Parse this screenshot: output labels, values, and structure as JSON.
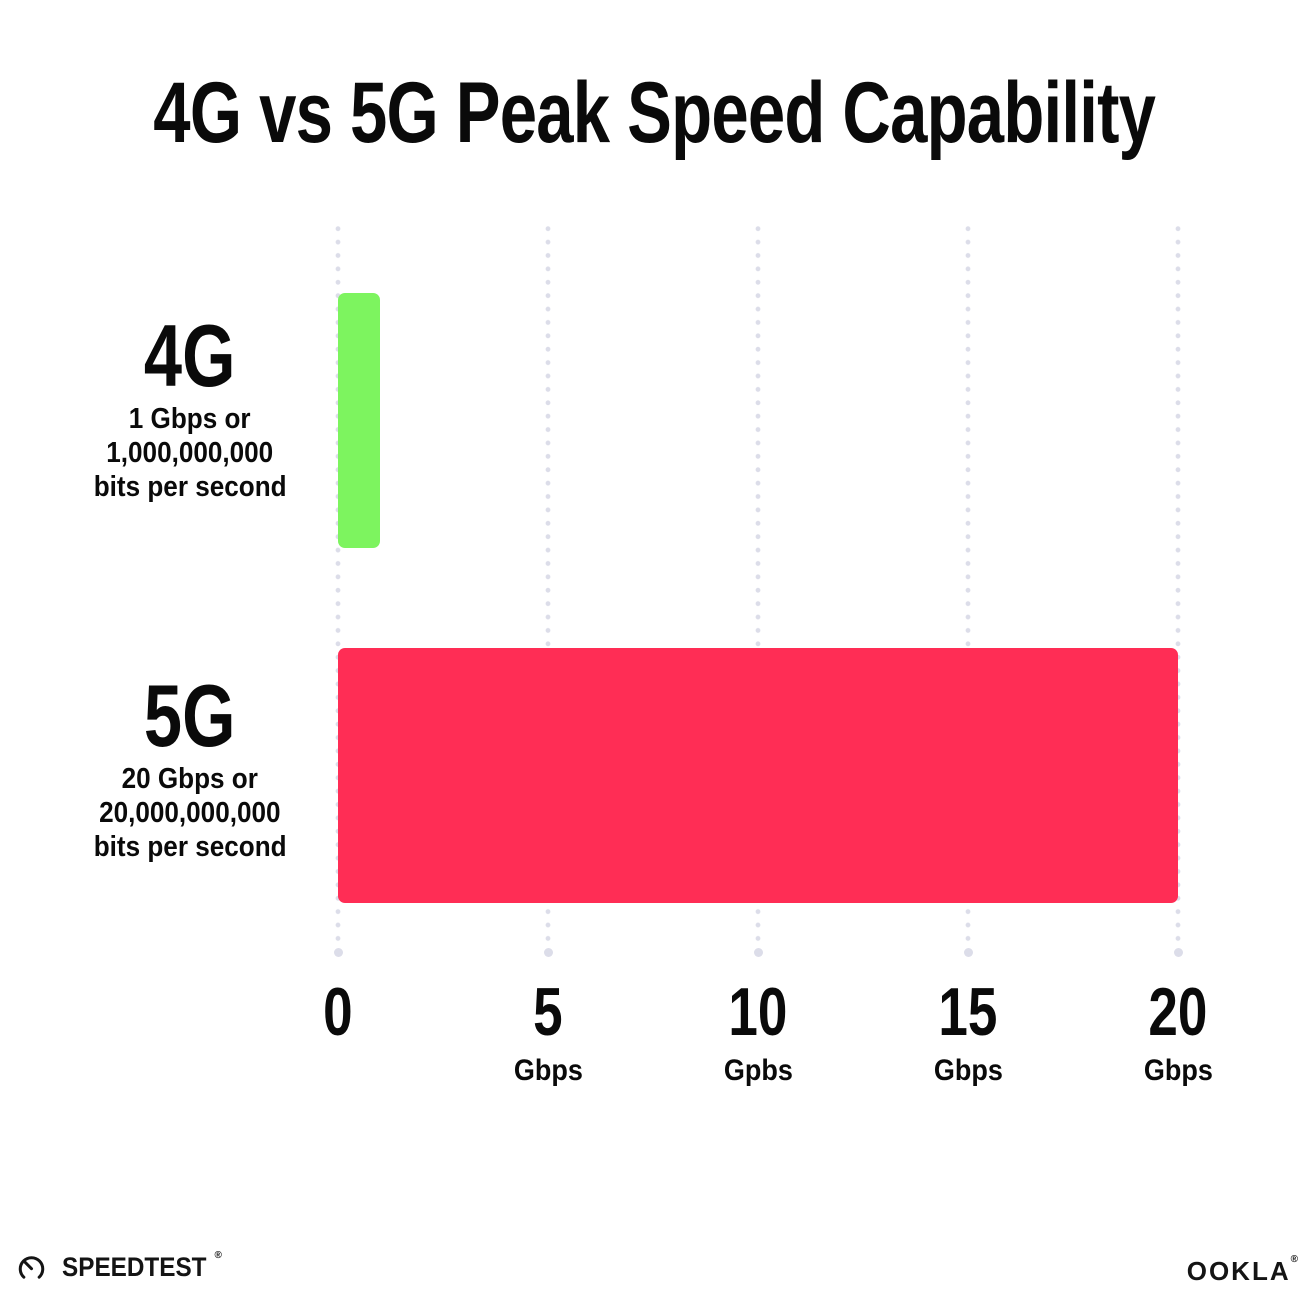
{
  "title": "4G vs 5G Peak Speed Capability",
  "chart_data": {
    "type": "bar",
    "orientation": "horizontal",
    "title": "4G vs 5G Peak Speed Capability",
    "categories": [
      "4G",
      "5G"
    ],
    "values": [
      1,
      20
    ],
    "value_unit": "Gbps",
    "xlim": [
      0,
      20
    ],
    "x_tick_interval": 5,
    "grid": "dotted vertical gridlines every 5 Gbps, with end dot at bottom",
    "legend": "none",
    "rows": [
      {
        "label": "4G",
        "sublabel": [
          "1 Gbps or",
          "1,000,000,000",
          "bits per second"
        ],
        "value": 1,
        "color": "#7DF45F"
      },
      {
        "label": "5G",
        "sublabel": [
          "20 Gbps or",
          "20,000,000,000",
          "bits per second"
        ],
        "value": 20,
        "color": "#FF2D55"
      }
    ],
    "x_ticks": [
      {
        "value": 0,
        "label": "0",
        "unit": ""
      },
      {
        "value": 5,
        "label": "5",
        "unit": "Gbps"
      },
      {
        "value": 10,
        "label": "10",
        "unit": "Gpbs"
      },
      {
        "value": 15,
        "label": "15",
        "unit": "Gbps"
      },
      {
        "value": 20,
        "label": "20",
        "unit": "Gbps"
      }
    ]
  },
  "footer": {
    "speedtest_label": "SPEEDTEST",
    "speedtest_mark": "®",
    "ookla_label": "OOKLA",
    "ookla_mark": "®"
  },
  "colors": {
    "bar_4g": "#7DF45F",
    "bar_5g": "#FF2D55",
    "gridline": "#DCDDE9",
    "text": "#0A0A0A",
    "background": "#FFFFFF"
  }
}
